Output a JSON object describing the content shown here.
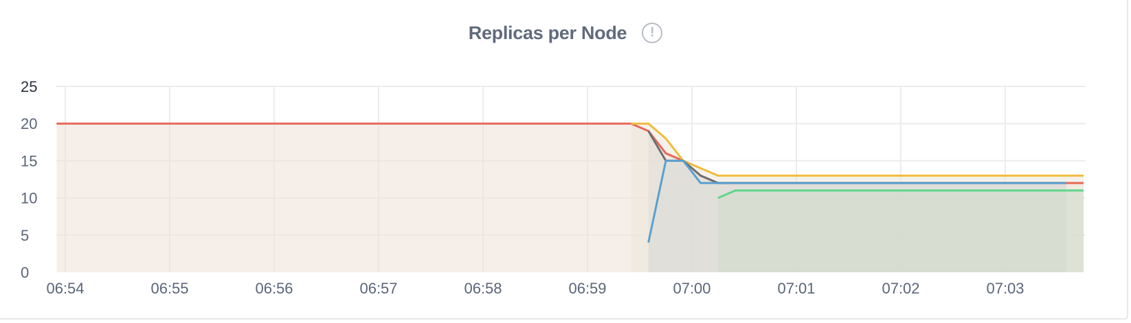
{
  "panel": {
    "title": "Replicas per Node",
    "info_icon": "exclamation-circle-icon"
  },
  "chart_data": {
    "type": "line",
    "title": "Replicas per Node",
    "xlabel": "",
    "ylabel": "",
    "ylim": [
      0,
      25
    ],
    "yticks": [
      "0",
      "5",
      "10",
      "15",
      "20",
      "25"
    ],
    "xticks": [
      "06:54",
      "06:55",
      "06:56",
      "06:57",
      "06:58",
      "06:59",
      "07:00",
      "07:01",
      "07:02",
      "07:03"
    ],
    "xlim": [
      "06:53:55",
      "07:03:45"
    ],
    "grid": true,
    "legend": "none",
    "colors": {
      "red": "#e8675a",
      "yellow": "#f0bb3b",
      "gray": "#6e6e6e",
      "blue": "#5aa0cf",
      "green": "#5ed68a"
    },
    "series": [
      {
        "color": "#e8675a",
        "fill": "#efe0d6",
        "points": [
          [
            "06:53:55",
            20
          ],
          [
            "06:59:25",
            20
          ],
          [
            "06:59:35",
            19
          ],
          [
            "06:59:45",
            16
          ],
          [
            "06:59:55",
            15
          ],
          [
            "07:00:05",
            13
          ],
          [
            "07:00:15",
            12
          ],
          [
            "07:03:45",
            12
          ]
        ]
      },
      {
        "color": "#f0bb3b",
        "fill": "#ebe7d9",
        "points": [
          [
            "06:59:25",
            20
          ],
          [
            "06:59:35",
            20
          ],
          [
            "06:59:45",
            18
          ],
          [
            "06:59:55",
            15
          ],
          [
            "07:00:05",
            14
          ],
          [
            "07:00:15",
            13
          ],
          [
            "07:03:45",
            13
          ]
        ]
      },
      {
        "color": "#6e6e6e",
        "fill": "#e0dcd8",
        "points": [
          [
            "06:59:35",
            19
          ],
          [
            "06:59:45",
            15
          ],
          [
            "06:59:55",
            15
          ],
          [
            "07:00:05",
            13
          ],
          [
            "07:00:15",
            12
          ],
          [
            "07:03:35",
            12
          ]
        ]
      },
      {
        "color": "#5aa0cf",
        "fill": "#dcdcd8",
        "points": [
          [
            "06:59:35",
            4
          ],
          [
            "06:59:45",
            15
          ],
          [
            "06:59:55",
            15
          ],
          [
            "07:00:05",
            12
          ],
          [
            "07:03:35",
            12
          ]
        ]
      },
      {
        "color": "#5ed68a",
        "fill": "#d0dacb",
        "points": [
          [
            "07:00:15",
            10
          ],
          [
            "07:00:25",
            11
          ],
          [
            "07:03:45",
            11
          ]
        ]
      }
    ]
  }
}
